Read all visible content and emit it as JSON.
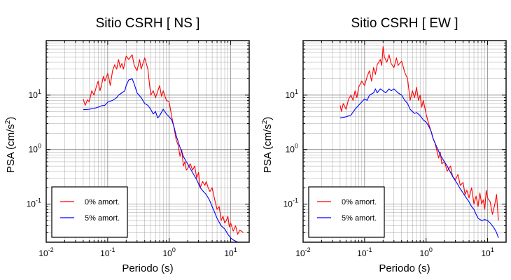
{
  "chart_data": [
    {
      "type": "line",
      "title": "Sitio CSRH [ NS ]",
      "xlabel": "Periodo (s)",
      "ylabel": "PSA (cm/s²)",
      "xscale": "log",
      "yscale": "log",
      "xlim": [
        0.01,
        20
      ],
      "ylim": [
        0.02,
        100
      ],
      "grid": true,
      "legend_position": "bottom-left",
      "x_ticks": [
        {
          "label": "10",
          "exp": "-2"
        },
        {
          "label": "10",
          "exp": "-1"
        },
        {
          "label": "10",
          "exp": "0"
        },
        {
          "label": "10",
          "exp": "1"
        }
      ],
      "y_ticks": [
        {
          "label": "10",
          "exp": "-1"
        },
        {
          "label": "10",
          "exp": "0"
        },
        {
          "label": "10",
          "exp": "1"
        }
      ],
      "series": [
        {
          "name": "0% amort.",
          "color": "#ff0000",
          "points": [
            [
              0.04,
              8.5
            ],
            [
              0.043,
              6.5
            ],
            [
              0.047,
              8.2
            ],
            [
              0.05,
              7.5
            ],
            [
              0.055,
              12
            ],
            [
              0.06,
              10
            ],
            [
              0.065,
              14
            ],
            [
              0.07,
              18
            ],
            [
              0.075,
              12
            ],
            [
              0.08,
              16
            ],
            [
              0.085,
              22
            ],
            [
              0.09,
              18
            ],
            [
              0.1,
              25
            ],
            [
              0.105,
              20
            ],
            [
              0.11,
              15
            ],
            [
              0.12,
              28
            ],
            [
              0.13,
              36
            ],
            [
              0.14,
              30
            ],
            [
              0.15,
              45
            ],
            [
              0.16,
              32
            ],
            [
              0.17,
              38
            ],
            [
              0.18,
              30
            ],
            [
              0.2,
              52
            ],
            [
              0.22,
              45
            ],
            [
              0.25,
              55
            ],
            [
              0.27,
              35
            ],
            [
              0.3,
              28
            ],
            [
              0.33,
              45
            ],
            [
              0.35,
              30
            ],
            [
              0.4,
              48
            ],
            [
              0.45,
              30
            ],
            [
              0.5,
              10
            ],
            [
              0.55,
              12
            ],
            [
              0.6,
              9
            ],
            [
              0.7,
              15
            ],
            [
              0.75,
              9.5
            ],
            [
              0.8,
              12
            ],
            [
              0.9,
              8
            ],
            [
              1.0,
              7.5
            ],
            [
              1.1,
              4
            ],
            [
              1.2,
              2.5
            ],
            [
              1.3,
              1.5
            ],
            [
              1.4,
              1.2
            ],
            [
              1.5,
              0.75
            ],
            [
              1.6,
              1.0
            ],
            [
              1.7,
              0.5
            ],
            [
              1.8,
              0.6
            ],
            [
              1.9,
              0.42
            ],
            [
              2.0,
              0.45
            ],
            [
              2.2,
              0.55
            ],
            [
              2.4,
              0.42
            ],
            [
              2.6,
              0.5
            ],
            [
              2.8,
              0.3
            ],
            [
              3.0,
              0.38
            ],
            [
              3.2,
              0.2
            ],
            [
              3.5,
              0.26
            ],
            [
              3.8,
              0.22
            ],
            [
              4.0,
              0.26
            ],
            [
              4.3,
              0.2
            ],
            [
              4.6,
              0.17
            ],
            [
              5.0,
              0.2
            ],
            [
              5.5,
              0.12
            ],
            [
              6.0,
              0.08
            ],
            [
              6.5,
              0.09
            ],
            [
              7.0,
              0.05
            ],
            [
              7.5,
              0.06
            ],
            [
              8.0,
              0.045
            ],
            [
              8.5,
              0.05
            ],
            [
              9.0,
              0.06
            ],
            [
              9.5,
              0.038
            ],
            [
              10,
              0.045
            ],
            [
              11,
              0.032
            ],
            [
              12,
              0.04
            ],
            [
              13,
              0.028
            ],
            [
              14,
              0.033
            ],
            [
              15,
              0.032
            ],
            [
              16,
              0.03
            ]
          ]
        },
        {
          "name": "5% amort.",
          "color": "#0000ff",
          "points": [
            [
              0.04,
              5.4
            ],
            [
              0.05,
              5.5
            ],
            [
              0.06,
              5.7
            ],
            [
              0.07,
              6
            ],
            [
              0.08,
              6.4
            ],
            [
              0.09,
              6.5
            ],
            [
              0.1,
              7.4
            ],
            [
              0.12,
              8
            ],
            [
              0.14,
              9
            ],
            [
              0.15,
              10
            ],
            [
              0.17,
              11
            ],
            [
              0.19,
              12
            ],
            [
              0.2,
              15
            ],
            [
              0.22,
              19
            ],
            [
              0.25,
              20
            ],
            [
              0.27,
              16
            ],
            [
              0.3,
              11
            ],
            [
              0.35,
              9
            ],
            [
              0.4,
              7
            ],
            [
              0.45,
              6.5
            ],
            [
              0.5,
              5.5
            ],
            [
              0.55,
              4.5
            ],
            [
              0.6,
              5
            ],
            [
              0.65,
              3.8
            ],
            [
              0.7,
              4.2
            ],
            [
              0.8,
              5.5
            ],
            [
              0.9,
              4.5
            ],
            [
              1.0,
              4
            ],
            [
              1.1,
              3.5
            ],
            [
              1.2,
              2.6
            ],
            [
              1.3,
              1.8
            ],
            [
              1.5,
              1.1
            ],
            [
              1.7,
              0.75
            ],
            [
              1.9,
              0.6
            ],
            [
              2.2,
              0.45
            ],
            [
              2.5,
              0.35
            ],
            [
              2.8,
              0.28
            ],
            [
              3.2,
              0.2
            ],
            [
              3.6,
              0.17
            ],
            [
              4.0,
              0.15
            ],
            [
              4.5,
              0.12
            ],
            [
              5.0,
              0.09
            ],
            [
              5.5,
              0.07
            ],
            [
              6.0,
              0.055
            ],
            [
              7.0,
              0.04
            ],
            [
              8.0,
              0.035
            ],
            [
              9.0,
              0.028
            ],
            [
              10,
              0.024
            ],
            [
              11,
              0.022
            ],
            [
              12,
              0.021
            ],
            [
              13,
              0.02
            ]
          ]
        }
      ]
    },
    {
      "type": "line",
      "title": "Sitio CSRH [ EW ]",
      "xlabel": "Periodo (s)",
      "ylabel": "PSA (cm/s²)",
      "xscale": "log",
      "yscale": "log",
      "xlim": [
        0.01,
        20
      ],
      "ylim": [
        0.02,
        100
      ],
      "grid": true,
      "legend_position": "bottom-left",
      "x_ticks": [
        {
          "label": "10",
          "exp": "-2"
        },
        {
          "label": "10",
          "exp": "-1"
        },
        {
          "label": "10",
          "exp": "0"
        },
        {
          "label": "10",
          "exp": "1"
        }
      ],
      "y_ticks": [
        {
          "label": "10",
          "exp": "-1"
        },
        {
          "label": "10",
          "exp": "0"
        },
        {
          "label": "10",
          "exp": "1"
        }
      ],
      "series": [
        {
          "name": "0% amort.",
          "color": "#ff0000",
          "points": [
            [
              0.04,
              6.5
            ],
            [
              0.042,
              5
            ],
            [
              0.045,
              7
            ],
            [
              0.05,
              5.5
            ],
            [
              0.055,
              8.5
            ],
            [
              0.06,
              10
            ],
            [
              0.065,
              8
            ],
            [
              0.07,
              12
            ],
            [
              0.075,
              9
            ],
            [
              0.08,
              14
            ],
            [
              0.09,
              18
            ],
            [
              0.1,
              15
            ],
            [
              0.11,
              22
            ],
            [
              0.12,
              28
            ],
            [
              0.13,
              18
            ],
            [
              0.14,
              32
            ],
            [
              0.15,
              24
            ],
            [
              0.16,
              36
            ],
            [
              0.18,
              45
            ],
            [
              0.19,
              35
            ],
            [
              0.2,
              78
            ],
            [
              0.21,
              50
            ],
            [
              0.23,
              40
            ],
            [
              0.25,
              55
            ],
            [
              0.27,
              38
            ],
            [
              0.3,
              32
            ],
            [
              0.33,
              48
            ],
            [
              0.35,
              35
            ],
            [
              0.4,
              42
            ],
            [
              0.45,
              26
            ],
            [
              0.5,
              20
            ],
            [
              0.55,
              8
            ],
            [
              0.6,
              12
            ],
            [
              0.65,
              9
            ],
            [
              0.7,
              14
            ],
            [
              0.75,
              8
            ],
            [
              0.8,
              10
            ],
            [
              0.85,
              6
            ],
            [
              0.9,
              8
            ],
            [
              1.0,
              4.5
            ],
            [
              1.1,
              3
            ],
            [
              1.2,
              2.2
            ],
            [
              1.3,
              1.6
            ],
            [
              1.4,
              1.3
            ],
            [
              1.5,
              0.95
            ],
            [
              1.6,
              0.7
            ],
            [
              1.7,
              0.9
            ],
            [
              1.8,
              0.55
            ],
            [
              2.0,
              0.6
            ],
            [
              2.2,
              0.4
            ],
            [
              2.5,
              0.5
            ],
            [
              2.7,
              0.32
            ],
            [
              3.0,
              0.28
            ],
            [
              3.3,
              0.35
            ],
            [
              3.6,
              0.22
            ],
            [
              4.0,
              0.25
            ],
            [
              4.3,
              0.15
            ],
            [
              4.6,
              0.18
            ],
            [
              5.0,
              0.13
            ],
            [
              5.5,
              0.2
            ],
            [
              6.0,
              0.1
            ],
            [
              6.5,
              0.14
            ],
            [
              7.0,
              0.09
            ],
            [
              7.5,
              0.16
            ],
            [
              8.0,
              0.1
            ],
            [
              8.5,
              0.12
            ],
            [
              9.0,
              0.08
            ],
            [
              9.5,
              0.18
            ],
            [
              10,
              0.13
            ],
            [
              11,
              0.11
            ],
            [
              12,
              0.065
            ],
            [
              13,
              0.095
            ],
            [
              14,
              0.15
            ],
            [
              15,
              0.05
            ]
          ]
        },
        {
          "name": "5% amort.",
          "color": "#0000ff",
          "points": [
            [
              0.04,
              3.8
            ],
            [
              0.05,
              4
            ],
            [
              0.06,
              4.3
            ],
            [
              0.07,
              5.5
            ],
            [
              0.08,
              6.5
            ],
            [
              0.09,
              7.5
            ],
            [
              0.1,
              8.5
            ],
            [
              0.11,
              8
            ],
            [
              0.12,
              10
            ],
            [
              0.14,
              11
            ],
            [
              0.15,
              13
            ],
            [
              0.16,
              11
            ],
            [
              0.18,
              13
            ],
            [
              0.2,
              12
            ],
            [
              0.22,
              11
            ],
            [
              0.25,
              13
            ],
            [
              0.27,
              12
            ],
            [
              0.3,
              13
            ],
            [
              0.35,
              11
            ],
            [
              0.4,
              10
            ],
            [
              0.45,
              8
            ],
            [
              0.5,
              7
            ],
            [
              0.55,
              5.5
            ],
            [
              0.6,
              5
            ],
            [
              0.65,
              4.6
            ],
            [
              0.7,
              4.8
            ],
            [
              0.8,
              4.2
            ],
            [
              0.9,
              3.5
            ],
            [
              1.0,
              3.2
            ],
            [
              1.1,
              2.7
            ],
            [
              1.2,
              2.2
            ],
            [
              1.3,
              1.6
            ],
            [
              1.5,
              1.1
            ],
            [
              1.7,
              0.8
            ],
            [
              1.9,
              0.65
            ],
            [
              2.2,
              0.5
            ],
            [
              2.5,
              0.38
            ],
            [
              2.8,
              0.3
            ],
            [
              3.2,
              0.24
            ],
            [
              3.6,
              0.19
            ],
            [
              4.0,
              0.16
            ],
            [
              4.5,
              0.13
            ],
            [
              5.0,
              0.11
            ],
            [
              5.5,
              0.09
            ],
            [
              6.0,
              0.08
            ],
            [
              6.5,
              0.065
            ],
            [
              7.0,
              0.055
            ],
            [
              8.0,
              0.05
            ],
            [
              9.0,
              0.052
            ],
            [
              10,
              0.05
            ],
            [
              11,
              0.045
            ],
            [
              12,
              0.04
            ],
            [
              13,
              0.035
            ],
            [
              14,
              0.03
            ],
            [
              15,
              0.024
            ]
          ]
        }
      ]
    }
  ]
}
